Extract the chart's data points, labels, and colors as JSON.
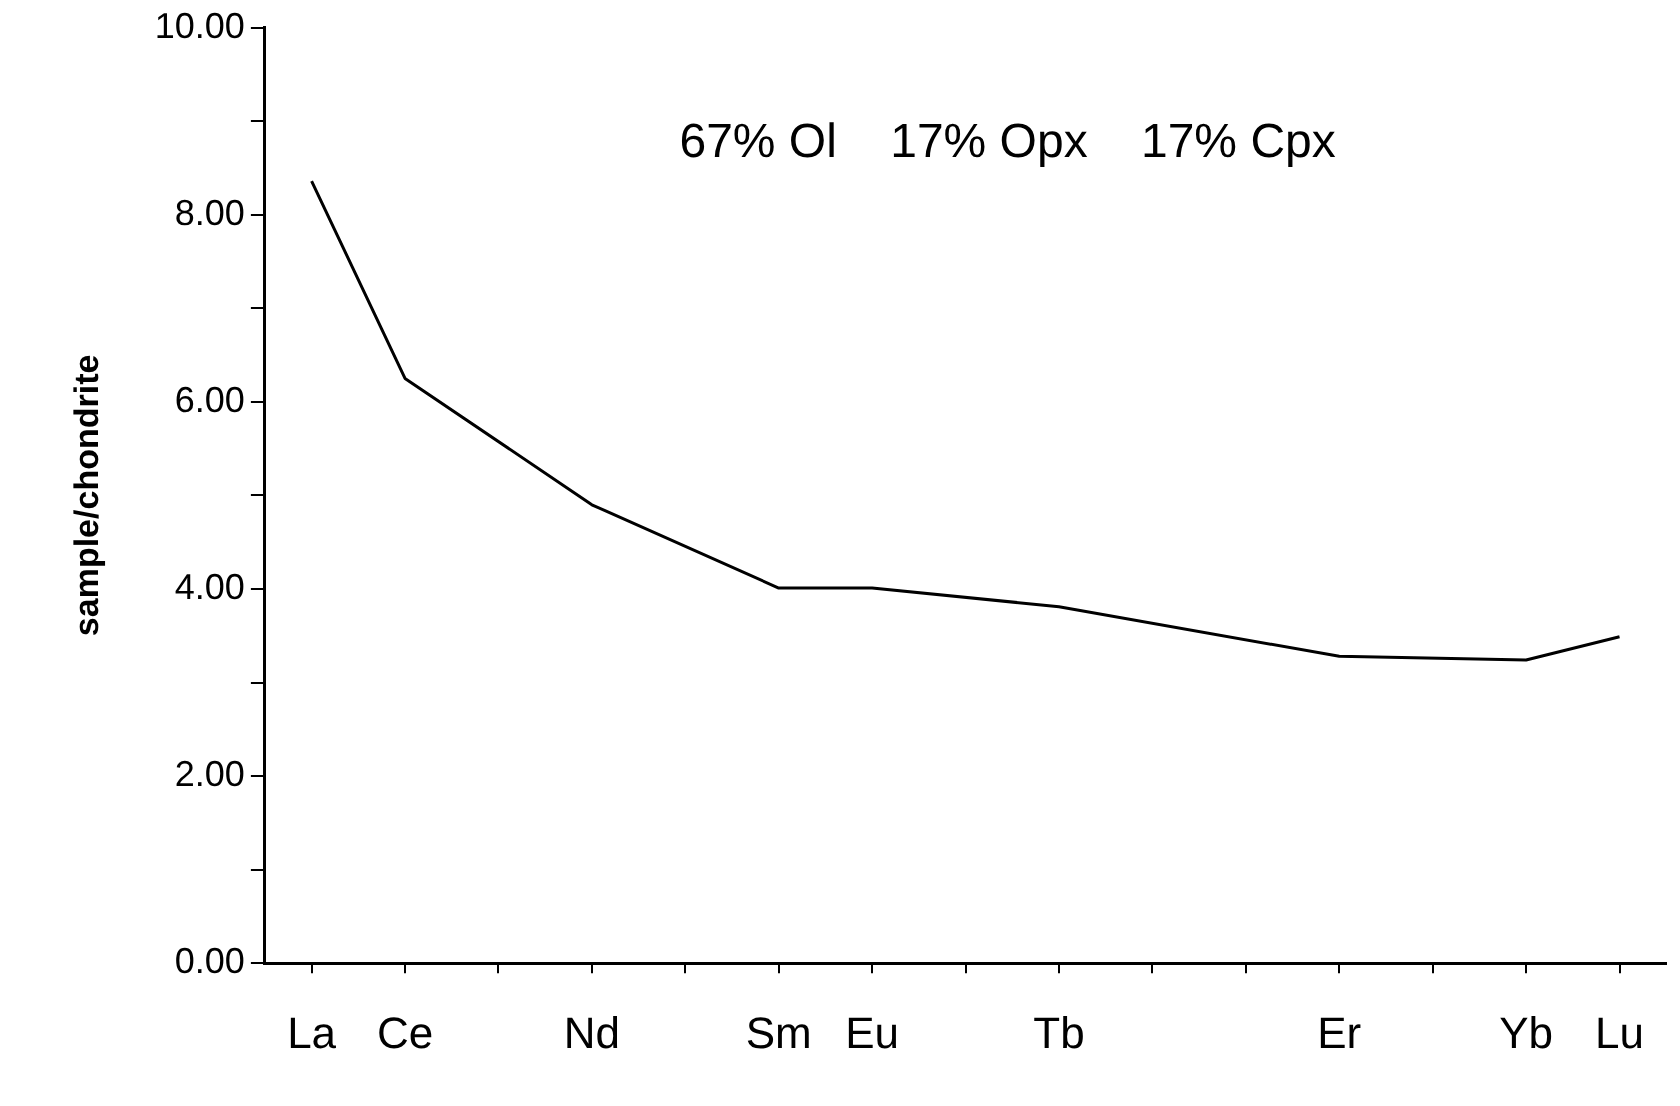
{
  "chart_data": {
    "type": "line",
    "ylabel": "sample/chondrite",
    "categories": [
      "La",
      "Ce",
      null,
      "Nd",
      null,
      "Sm",
      "Eu",
      null,
      "Tb",
      null,
      null,
      "Er",
      null,
      "Yb",
      "Lu"
    ],
    "series": [
      {
        "color": "#000000",
        "values": [
          8.36,
          6.25,
          null,
          4.9,
          null,
          4.01,
          4.01,
          null,
          3.81,
          null,
          null,
          3.28,
          null,
          3.24,
          3.49
        ]
      }
    ],
    "ylim": [
      0,
      10
    ],
    "yticks": [
      {
        "value": 0,
        "label": "0.00"
      },
      {
        "value": 1,
        "label": null
      },
      {
        "value": 2,
        "label": "2.00"
      },
      {
        "value": 3,
        "label": null
      },
      {
        "value": 4,
        "label": "4.00"
      },
      {
        "value": 5,
        "label": null
      },
      {
        "value": 6,
        "label": "6.00"
      },
      {
        "value": 7,
        "label": null
      },
      {
        "value": 8,
        "label": "8.00"
      },
      {
        "value": 9,
        "label": null
      },
      {
        "value": 10,
        "label": "10.00"
      }
    ],
    "annotations": [
      "67% Ol    17% Opx    17% Cpx"
    ],
    "grid": false,
    "legend": false,
    "marker": "none",
    "line_style": "solid"
  }
}
